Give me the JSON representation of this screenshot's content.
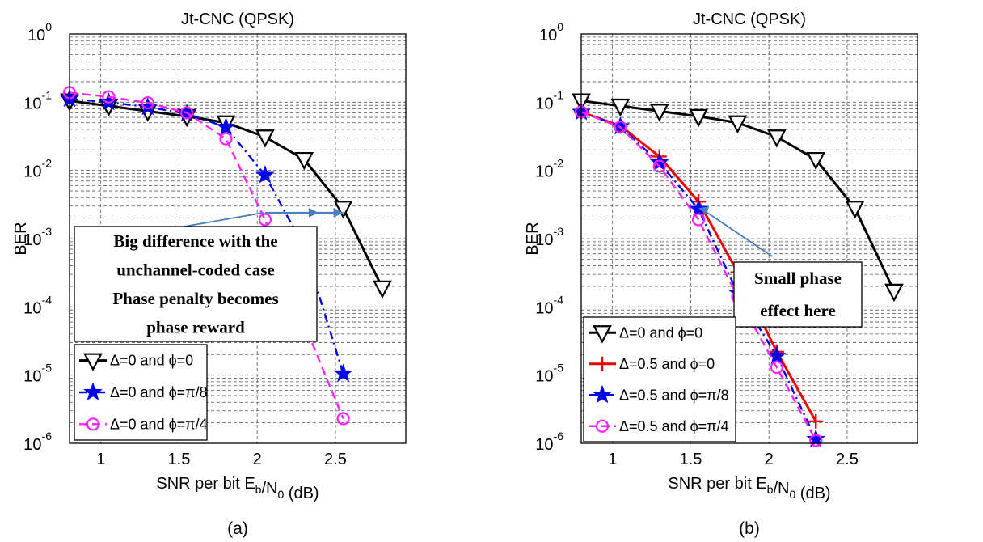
{
  "chart_data": [
    {
      "type": "line",
      "title": "Jt-CNC (QPSK)",
      "xlabel": "SNR per bit E_b/N_0 (dB)",
      "ylabel": "BER",
      "panel_label": "(a)",
      "xlim": [
        0.8,
        2.95
      ],
      "ylim": [
        1e-06,
        1
      ],
      "yscale": "log",
      "grid": true,
      "xticks": [
        "1",
        "1.5",
        "2",
        "2.5"
      ],
      "yticks": [
        {
          "base": "10",
          "exp": "0"
        },
        {
          "base": "10",
          "exp": "-1"
        },
        {
          "base": "10",
          "exp": "-2"
        },
        {
          "base": "10",
          "exp": "-3"
        },
        {
          "base": "10",
          "exp": "-4"
        },
        {
          "base": "10",
          "exp": "-5"
        },
        {
          "base": "10",
          "exp": "-6"
        }
      ],
      "legend_position": "bottom-left",
      "series": [
        {
          "name": "Δ=0 and ϕ=0",
          "color": "#000000",
          "style": "solid",
          "marker": "triangle-down",
          "x": [
            0.8,
            1.05,
            1.3,
            1.55,
            1.8,
            2.05,
            2.3,
            2.55,
            2.8
          ],
          "y": [
            0.105,
            0.088,
            0.074,
            0.062,
            0.05,
            0.031,
            0.0145,
            0.0028,
            0.00019
          ]
        },
        {
          "name": "Δ=0 and ϕ=π/8",
          "color": "#0000ee",
          "style": "dashdot",
          "marker": "star",
          "x": [
            0.8,
            1.05,
            1.3,
            1.55,
            1.8,
            2.05,
            2.3,
            2.55
          ],
          "y": [
            0.112,
            0.1,
            0.085,
            0.068,
            0.043,
            0.0085,
            0.00075,
            1.05e-05
          ]
        },
        {
          "name": "Δ=0 and ϕ=π/4",
          "color": "#ff22ff",
          "style": "dashed",
          "marker": "circle",
          "x": [
            0.8,
            1.05,
            1.3,
            1.55,
            1.8,
            2.05,
            2.3,
            2.55
          ],
          "y": [
            0.138,
            0.12,
            0.098,
            0.07,
            0.029,
            0.0019,
            5.7e-05,
            2.3e-06
          ]
        }
      ],
      "annotation": {
        "lines": [
          "Big difference with the",
          "unchannel-coded case",
          "Phase penalty becomes",
          "phase reward"
        ]
      }
    },
    {
      "type": "line",
      "title": "Jt-CNC (QPSK)",
      "xlabel": "SNR per bit E_b/N_0 (dB)",
      "ylabel": "BER",
      "panel_label": "(b)",
      "xlim": [
        0.8,
        2.95
      ],
      "ylim": [
        1e-06,
        1
      ],
      "yscale": "log",
      "grid": true,
      "xticks": [
        "1",
        "1.5",
        "2",
        "2.5"
      ],
      "yticks": [
        {
          "base": "10",
          "exp": "0"
        },
        {
          "base": "10",
          "exp": "-1"
        },
        {
          "base": "10",
          "exp": "-2"
        },
        {
          "base": "10",
          "exp": "-3"
        },
        {
          "base": "10",
          "exp": "-4"
        },
        {
          "base": "10",
          "exp": "-5"
        },
        {
          "base": "10",
          "exp": "-6"
        }
      ],
      "legend_position": "bottom-left",
      "series": [
        {
          "name": "Δ=0 and ϕ=0",
          "color": "#000000",
          "style": "solid",
          "marker": "triangle-down",
          "x": [
            0.8,
            1.05,
            1.3,
            1.55,
            1.8,
            2.05,
            2.3,
            2.55,
            2.8
          ],
          "y": [
            0.105,
            0.088,
            0.074,
            0.062,
            0.05,
            0.031,
            0.0145,
            0.0028,
            0.00017
          ]
        },
        {
          "name": "Δ=0.5 and ϕ=0",
          "color": "#ee0000",
          "style": "solid",
          "marker": "plus",
          "x": [
            0.8,
            1.05,
            1.3,
            1.55,
            1.8,
            2.05,
            2.3
          ],
          "y": [
            0.072,
            0.045,
            0.016,
            0.0035,
            0.00032,
            2.2e-05,
            2.1e-06
          ]
        },
        {
          "name": "Δ=0.5 and ϕ=π/8",
          "color": "#0000ee",
          "style": "dashdot",
          "marker": "star",
          "x": [
            0.8,
            1.05,
            1.3,
            1.55,
            1.8,
            2.05,
            2.3
          ],
          "y": [
            0.072,
            0.044,
            0.013,
            0.0027,
            0.00016,
            1.9e-05,
            1.15e-06
          ]
        },
        {
          "name": "Δ=0.5 and ϕ=π/4",
          "color": "#ff22ff",
          "style": "dashed",
          "marker": "circle",
          "x": [
            0.8,
            1.05,
            1.3,
            1.55,
            1.8,
            2.05,
            2.3
          ],
          "y": [
            0.072,
            0.043,
            0.0115,
            0.0019,
            0.00014,
            1.3e-05,
            1.1e-06
          ]
        }
      ],
      "annotation": {
        "lines": [
          "Small phase",
          "effect here"
        ]
      }
    }
  ]
}
